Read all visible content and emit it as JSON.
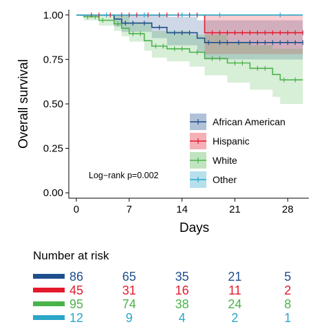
{
  "chart_data": {
    "type": "line",
    "subtype": "kaplan-meier",
    "title": "",
    "xlabel": "Days",
    "ylabel": "Overall survival",
    "xlim": [
      -1,
      30.8
    ],
    "ylim": [
      -0.03,
      1.03
    ],
    "x_ticks": [
      0,
      7,
      14,
      21,
      28
    ],
    "y_ticks": [
      0.0,
      0.25,
      0.5,
      0.75,
      1.0
    ],
    "y_tick_labels": [
      "0.00",
      "0.25",
      "0.50",
      "0.75",
      "1.00"
    ],
    "grid": false,
    "legend_placement": "bottom-right",
    "annotation": "Log−rank p=0.002",
    "series": [
      {
        "name": "African American",
        "color": "#1f4e8c",
        "fill": "#1f4e8c",
        "steps": [
          [
            0,
            1.0
          ],
          [
            5,
            0.977
          ],
          [
            6,
            0.954
          ],
          [
            10,
            0.93
          ],
          [
            12,
            0.9
          ],
          [
            16,
            0.87
          ],
          [
            17,
            0.845
          ],
          [
            30,
            0.845
          ]
        ],
        "ci_upper": [
          [
            0,
            1.0
          ],
          [
            5,
            1.0
          ],
          [
            12,
            0.99
          ],
          [
            16,
            0.97
          ],
          [
            30,
            0.96
          ]
        ],
        "ci_lower": [
          [
            0,
            1.0
          ],
          [
            5,
            0.935
          ],
          [
            6,
            0.905
          ],
          [
            10,
            0.87
          ],
          [
            12,
            0.83
          ],
          [
            16,
            0.79
          ],
          [
            17,
            0.75
          ],
          [
            30,
            0.75
          ]
        ],
        "censor_times": [
          6.5,
          7.5,
          9,
          11,
          13,
          14,
          15,
          17.5,
          19,
          20,
          21.5,
          23,
          24,
          25,
          26,
          27,
          28,
          29,
          30
        ]
      },
      {
        "name": "Hispanic",
        "color": "#e31a2d",
        "fill": "#e31a2d",
        "steps": [
          [
            0,
            1.0
          ],
          [
            17,
            0.9
          ],
          [
            30,
            0.9
          ]
        ],
        "ci_upper": [
          [
            0,
            1.0
          ],
          [
            30,
            1.0
          ]
        ],
        "ci_lower": [
          [
            0,
            1.0
          ],
          [
            17,
            0.78
          ],
          [
            30,
            0.78
          ]
        ],
        "censor_times": [
          2,
          3,
          4.5,
          6,
          7,
          8,
          9.5,
          11,
          12,
          13.5,
          15,
          16,
          18,
          19,
          20,
          21,
          22,
          23,
          24,
          25,
          26,
          27,
          28,
          29,
          30
        ]
      },
      {
        "name": "White",
        "color": "#4ab34a",
        "fill": "#4ab34a",
        "steps": [
          [
            0,
            1.0
          ],
          [
            1,
            0.99
          ],
          [
            3,
            0.97
          ],
          [
            5,
            0.95
          ],
          [
            6,
            0.925
          ],
          [
            7,
            0.895
          ],
          [
            9,
            0.855
          ],
          [
            10,
            0.825
          ],
          [
            12,
            0.81
          ],
          [
            15,
            0.79
          ],
          [
            17,
            0.755
          ],
          [
            20,
            0.73
          ],
          [
            23,
            0.7
          ],
          [
            26,
            0.665
          ],
          [
            27,
            0.635
          ],
          [
            30,
            0.635
          ]
        ],
        "ci_upper": [
          [
            0,
            1.0
          ],
          [
            5,
            1.0
          ],
          [
            7,
            0.96
          ],
          [
            10,
            0.91
          ],
          [
            15,
            0.89
          ],
          [
            20,
            0.85
          ],
          [
            23,
            0.83
          ],
          [
            26,
            0.81
          ],
          [
            30,
            0.79
          ]
        ],
        "ci_lower": [
          [
            0,
            1.0
          ],
          [
            1,
            0.97
          ],
          [
            3,
            0.94
          ],
          [
            5,
            0.91
          ],
          [
            6,
            0.88
          ],
          [
            7,
            0.85
          ],
          [
            9,
            0.8
          ],
          [
            10,
            0.76
          ],
          [
            12,
            0.74
          ],
          [
            15,
            0.71
          ],
          [
            17,
            0.66
          ],
          [
            20,
            0.62
          ],
          [
            23,
            0.58
          ],
          [
            26,
            0.54
          ],
          [
            27,
            0.5
          ],
          [
            30,
            0.5
          ]
        ],
        "censor_times": [
          1.5,
          2.5,
          3.5,
          5.5,
          7.5,
          8.5,
          10.5,
          11.5,
          13,
          14,
          16,
          18,
          19,
          21,
          22,
          24,
          25,
          27.5,
          29
        ]
      },
      {
        "name": "Other",
        "color": "#2aa6c8",
        "fill": "#2aa6c8",
        "steps": [
          [
            0,
            1.0
          ],
          [
            30,
            1.0
          ]
        ],
        "ci_upper": [
          [
            0,
            1.0
          ],
          [
            30,
            1.0
          ]
        ],
        "ci_lower": [
          [
            0,
            1.0
          ],
          [
            30,
            1.0
          ]
        ],
        "censor_times": [
          4,
          9,
          14,
          19,
          27
        ]
      }
    ]
  },
  "risk_table": {
    "title": "Number at risk",
    "time_points": [
      0,
      7,
      14,
      21,
      28
    ],
    "rows": [
      {
        "color": "#1f4e8c",
        "values": [
          "86",
          "65",
          "35",
          "21",
          "5"
        ]
      },
      {
        "color": "#e31a2d",
        "values": [
          "45",
          "31",
          "16",
          "11",
          "2"
        ]
      },
      {
        "color": "#4ab34a",
        "values": [
          "95",
          "74",
          "38",
          "24",
          "8"
        ]
      },
      {
        "color": "#2aa6c8",
        "values": [
          "12",
          "9",
          "4",
          "2",
          "1"
        ]
      }
    ]
  }
}
